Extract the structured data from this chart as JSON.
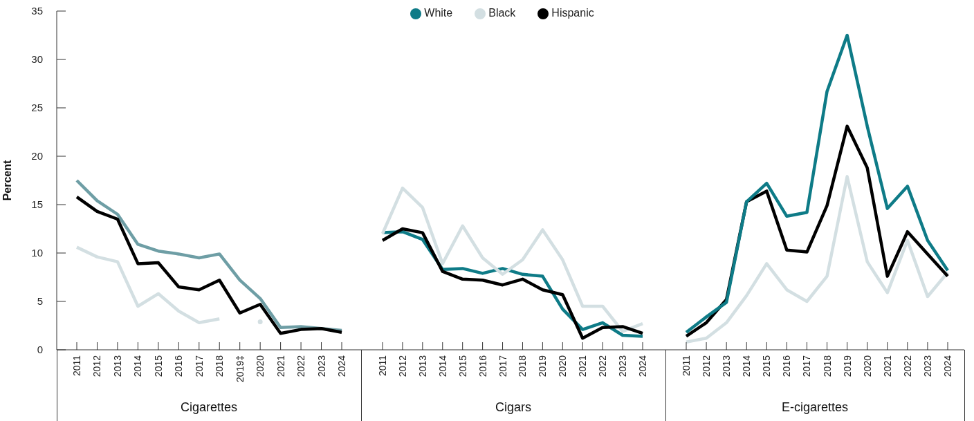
{
  "chart_data": [
    {
      "type": "line",
      "xlabel": "Cigarettes",
      "ylabel": "Percent",
      "categories": [
        "2011",
        "2012",
        "2013",
        "2014",
        "2015",
        "2016",
        "2017",
        "2018",
        "2019‡",
        "2020",
        "2021",
        "2022",
        "2023",
        "2024"
      ],
      "ylim": [
        0,
        35
      ],
      "yticks": [
        0,
        5,
        10,
        15,
        20,
        25,
        30,
        35
      ],
      "grid": false,
      "legend": false,
      "marker": "none",
      "line_style": "solid",
      "series": [
        {
          "color": "#6e9ea5",
          "values": [
            17.5,
            15.4,
            14.0,
            10.9,
            10.2,
            9.9,
            9.5,
            9.9,
            7.2,
            5.3,
            2.3,
            2.4,
            2.2,
            2.0
          ]
        },
        {
          "color": "#d3dfe2",
          "values": [
            10.6,
            9.6,
            9.1,
            4.5,
            5.8,
            4.0,
            2.8,
            3.2,
            null,
            2.9,
            null,
            null,
            null,
            null
          ]
        },
        {
          "color": "#000000",
          "values": [
            15.8,
            14.3,
            13.5,
            8.9,
            9.0,
            6.5,
            6.2,
            7.2,
            3.8,
            4.7,
            1.7,
            2.1,
            2.2,
            1.8
          ]
        }
      ]
    },
    {
      "type": "line",
      "xlabel": "Cigars",
      "categories": [
        "2011",
        "2012",
        "2013",
        "2014",
        "2015",
        "2016",
        "2017",
        "2018",
        "2019",
        "2020",
        "2021",
        "2022",
        "2023",
        "2024"
      ],
      "ylim": [
        0,
        35
      ],
      "yticks": [
        0,
        5,
        10,
        15,
        20,
        25,
        30,
        35
      ],
      "tick_labels": "x",
      "grid": false,
      "legend": "top",
      "marker": "none",
      "line_style": "solid",
      "series": [
        {
          "name": "White",
          "color": "#0e7b87",
          "values": [
            12.1,
            12.2,
            11.4,
            8.3,
            8.4,
            7.9,
            8.4,
            7.8,
            7.6,
            4.2,
            2.1,
            2.8,
            1.5,
            1.4
          ]
        },
        {
          "name": "Black",
          "color": "#d3dfe2",
          "values": [
            12.0,
            16.7,
            14.7,
            8.9,
            12.8,
            9.5,
            7.8,
            9.3,
            12.4,
            9.3,
            4.5,
            4.5,
            1.9,
            2.7
          ]
        },
        {
          "name": "Hispanic",
          "color": "#000000",
          "values": [
            11.3,
            12.5,
            12.1,
            8.1,
            7.3,
            7.2,
            6.7,
            7.3,
            6.2,
            5.7,
            1.2,
            2.3,
            2.4,
            1.7
          ]
        }
      ]
    },
    {
      "type": "line",
      "xlabel": "E-cigarettes",
      "categories": [
        "2011",
        "2012",
        "2013",
        "2014",
        "2015",
        "2016",
        "2017",
        "2018",
        "2019",
        "2020",
        "2021",
        "2022",
        "2023",
        "2024"
      ],
      "ylim": [
        0,
        35
      ],
      "yticks": [
        0,
        5,
        10,
        15,
        20,
        25,
        30,
        35
      ],
      "tick_labels": "x",
      "grid": false,
      "legend": false,
      "marker": "none",
      "line_style": "solid",
      "series": [
        {
          "color": "#d3dfe2",
          "values": [
            0.8,
            1.2,
            2.8,
            5.6,
            8.9,
            6.2,
            5.0,
            7.6,
            17.9,
            9.1,
            5.9,
            11.3,
            5.5,
            8.0
          ]
        },
        {
          "color": "#000000",
          "values": [
            1.4,
            2.8,
            5.2,
            15.3,
            16.4,
            10.3,
            10.1,
            14.9,
            23.1,
            18.8,
            7.6,
            12.2,
            9.9,
            7.6
          ]
        },
        {
          "color": "#0e7b87",
          "values": [
            1.8,
            3.4,
            4.9,
            15.3,
            17.2,
            13.8,
            14.2,
            26.7,
            32.5,
            23.1,
            14.6,
            16.9,
            11.3,
            8.2
          ]
        }
      ]
    }
  ]
}
